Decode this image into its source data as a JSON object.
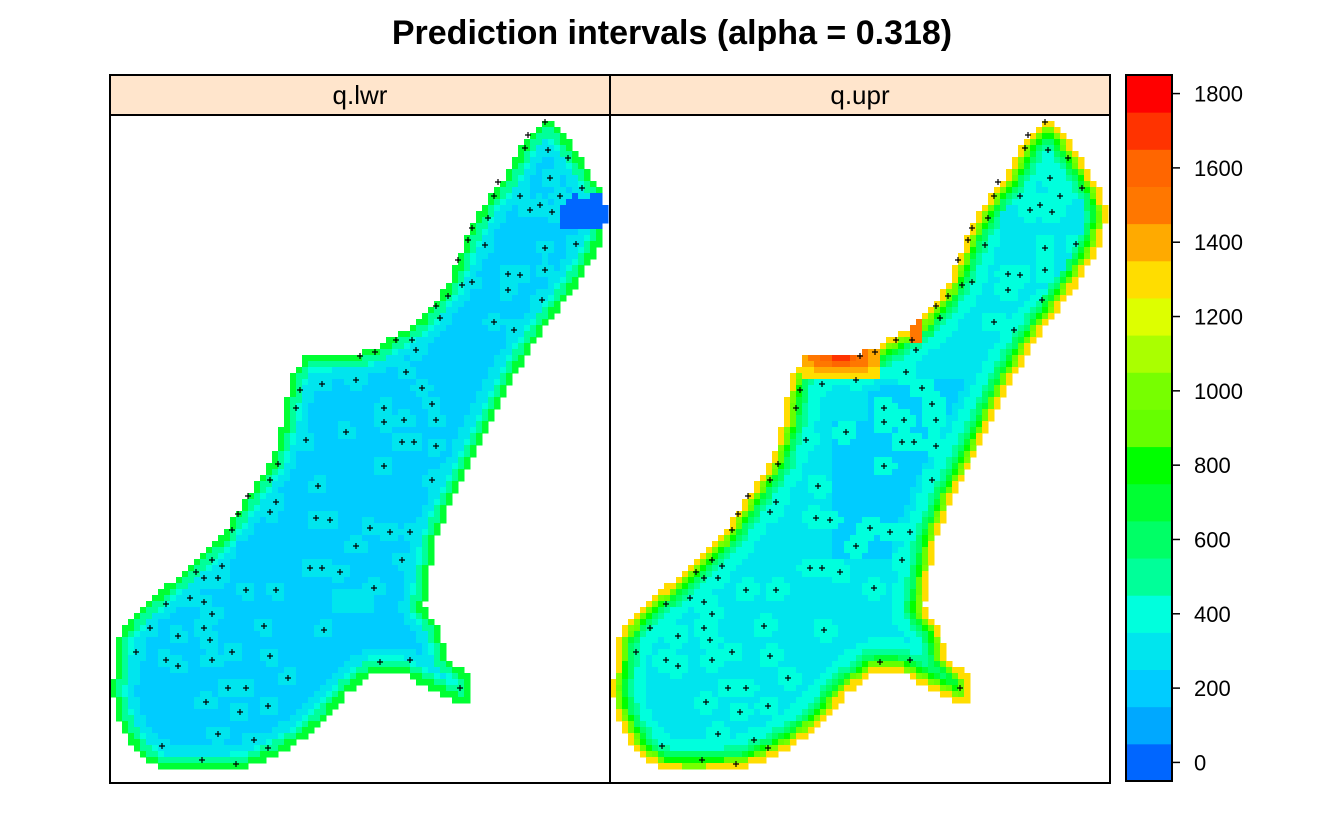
{
  "chart_data": {
    "type": "heatmap",
    "title": "Prediction intervals (alpha = 0.318)",
    "panels": [
      {
        "name": "q.lwr",
        "strip_color": "#ffe5cc"
      },
      {
        "name": "q.upr",
        "strip_color": "#ffe5cc"
      }
    ],
    "colorbar": {
      "range": [
        -50,
        1850
      ],
      "ticks": [
        0,
        200,
        400,
        600,
        800,
        1000,
        1200,
        1400,
        1600,
        1800
      ],
      "bands": [
        {
          "from": -50,
          "to": 50,
          "color": "#0066ff"
        },
        {
          "from": 50,
          "to": 150,
          "color": "#00a8ff"
        },
        {
          "from": 150,
          "to": 250,
          "color": "#00ccff"
        },
        {
          "from": 250,
          "to": 350,
          "color": "#00e5ee"
        },
        {
          "from": 350,
          "to": 450,
          "color": "#00ffdd"
        },
        {
          "from": 450,
          "to": 550,
          "color": "#00ff99"
        },
        {
          "from": 550,
          "to": 650,
          "color": "#00ff66"
        },
        {
          "from": 650,
          "to": 750,
          "color": "#00ff33"
        },
        {
          "from": 750,
          "to": 850,
          "color": "#00ff00"
        },
        {
          "from": 850,
          "to": 950,
          "color": "#66ff00"
        },
        {
          "from": 950,
          "to": 1050,
          "color": "#77ff00"
        },
        {
          "from": 1050,
          "to": 1150,
          "color": "#aaff00"
        },
        {
          "from": 1150,
          "to": 1250,
          "color": "#ddff00"
        },
        {
          "from": 1250,
          "to": 1350,
          "color": "#ffdd00"
        },
        {
          "from": 1350,
          "to": 1450,
          "color": "#ffaa00"
        },
        {
          "from": 1450,
          "to": 1550,
          "color": "#ff7700"
        },
        {
          "from": 1550,
          "to": 1650,
          "color": "#ff6600"
        },
        {
          "from": 1650,
          "to": 1750,
          "color": "#ff3300"
        },
        {
          "from": 1750,
          "to": 1850,
          "color": "#ff0000"
        }
      ]
    },
    "grid": false,
    "legend_position": "right",
    "points_marker": "+"
  }
}
